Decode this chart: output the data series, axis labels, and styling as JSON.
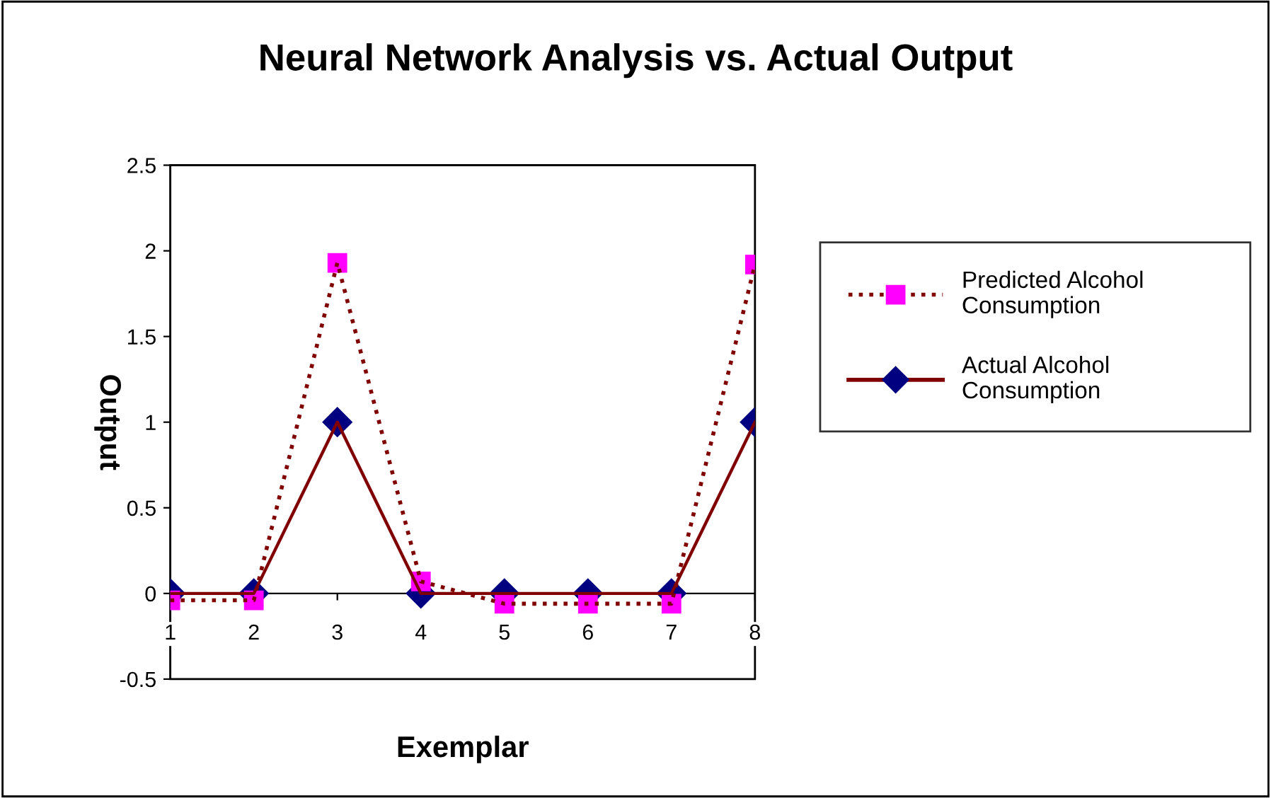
{
  "chart_data": {
    "type": "line",
    "title": "Neural Network Analysis vs. Actual Output",
    "xlabel": "Exemplar",
    "ylabel": "Output",
    "categories": [
      "1",
      "2",
      "3",
      "4",
      "5",
      "6",
      "7",
      "8"
    ],
    "series": [
      {
        "name": "Predicted Alcohol Consumption",
        "color": "#800000",
        "colors": [
          "#ff00ff",
          "#ff00ff",
          "#ff00ff",
          "#ff00ff",
          "#ff00ff",
          "#ff00ff",
          "#ff00ff",
          "#ff00ff"
        ],
        "marker": "square",
        "line_style": "dotted",
        "values": [
          -0.04,
          -0.04,
          1.93,
          0.07,
          -0.06,
          -0.06,
          -0.06,
          1.92
        ]
      },
      {
        "name": "Actual Alcohol Consumption",
        "color": "#800000",
        "colors": [
          "#000080",
          "#000080",
          "#000080",
          "#000080",
          "#000080",
          "#000080",
          "#000080",
          "#000080"
        ],
        "marker": "diamond",
        "line_style": "solid",
        "values": [
          0,
          0,
          1,
          0,
          0,
          0,
          0,
          1
        ]
      }
    ],
    "ylim": [
      -0.5,
      2.5
    ],
    "yticks": [
      -0.5,
      0,
      0.5,
      1,
      1.5,
      2,
      2.5
    ],
    "grid": false,
    "legend": "right"
  }
}
